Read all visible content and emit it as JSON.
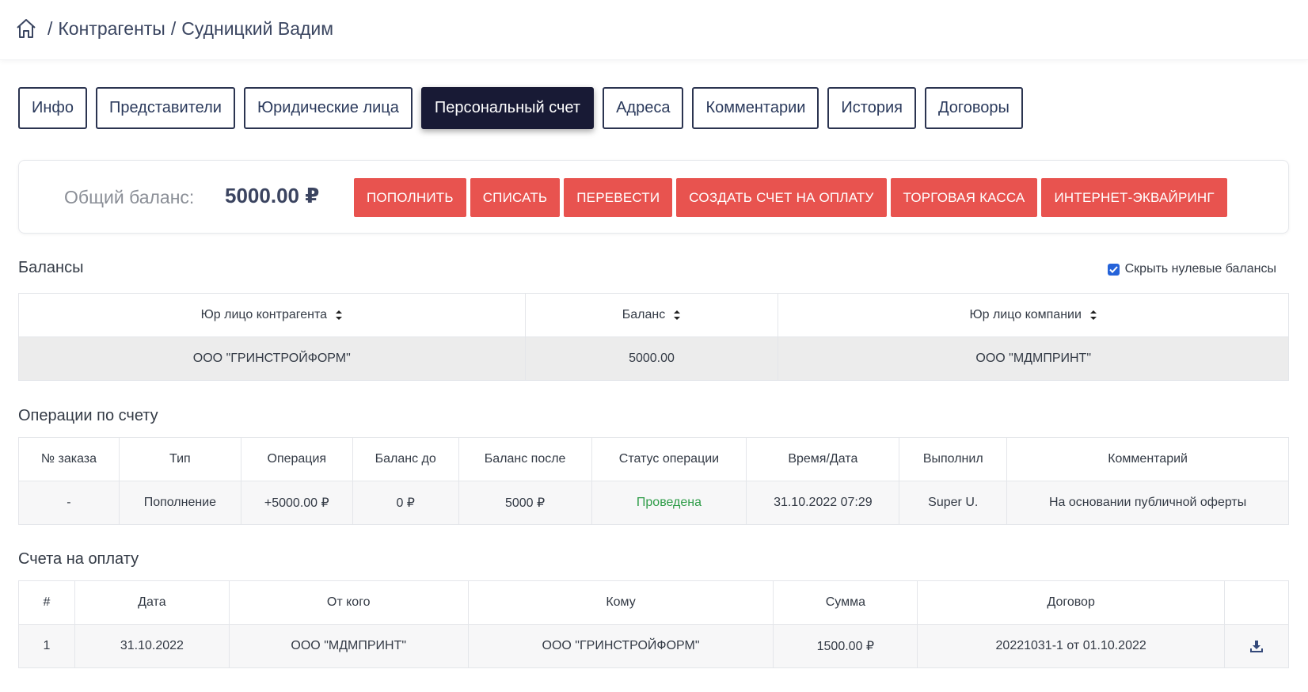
{
  "breadcrumb": {
    "home_icon": "home-icon",
    "separator": "/",
    "items": [
      "Контрагенты",
      "Судницкий Вадим"
    ]
  },
  "tabs": [
    {
      "label": "Инфо",
      "active": false
    },
    {
      "label": "Представители",
      "active": false
    },
    {
      "label": "Юридические лица",
      "active": false
    },
    {
      "label": "Персональный счет",
      "active": true
    },
    {
      "label": "Адреса",
      "active": false
    },
    {
      "label": "Комментарии",
      "active": false
    },
    {
      "label": "История",
      "active": false
    },
    {
      "label": "Договоры",
      "active": false
    }
  ],
  "balance": {
    "label": "Общий баланс:",
    "value": "5000.00 ₽",
    "actions": [
      "ПОПОЛНИТЬ",
      "СПИСАТЬ",
      "ПЕРЕВЕСТИ",
      "СОЗДАТЬ СЧЕТ НА ОПЛАТУ",
      "ТОРГОВАЯ КАССА",
      "ИНТЕРНЕТ-ЭКВАЙРИНГ"
    ],
    "action_color": "#e8534f"
  },
  "balances": {
    "title": "Балансы",
    "hide_zero_label": "Скрыть нулевые балансы",
    "hide_zero_checked": true,
    "columns": [
      "Юр лицо контрагента",
      "Баланс",
      "Юр лицо компании"
    ],
    "rows": [
      [
        "ООО \"ГРИНСТРОЙФОРМ\"",
        "5000.00",
        "ООО \"МДМПРИНТ\""
      ]
    ]
  },
  "operations": {
    "title": "Операции по счету",
    "columns": [
      "№ заказа",
      "Тип",
      "Операция",
      "Баланс до",
      "Баланс после",
      "Статус операции",
      "Время/Дата",
      "Выполнил",
      "Комментарий"
    ],
    "rows": [
      [
        "-",
        "Пополнение",
        "+5000.00 ₽",
        "0 ₽",
        "5000 ₽",
        "Проведена",
        "31.10.2022 07:29",
        "Super U.",
        "На основании публичной оферты"
      ]
    ],
    "status_color": "#2e9c48"
  },
  "invoices": {
    "title": "Счета на оплату",
    "columns": [
      "#",
      "Дата",
      "От кого",
      "Кому",
      "Сумма",
      "Договор",
      ""
    ],
    "rows": [
      [
        "1",
        "31.10.2022",
        "ООО \"МДМПРИНТ\"",
        "ООО \"ГРИНСТРОЙФОРМ\"",
        "1500.00 ₽",
        "20221031-1 от 01.10.2022"
      ]
    ],
    "download_icon": "download-icon"
  }
}
